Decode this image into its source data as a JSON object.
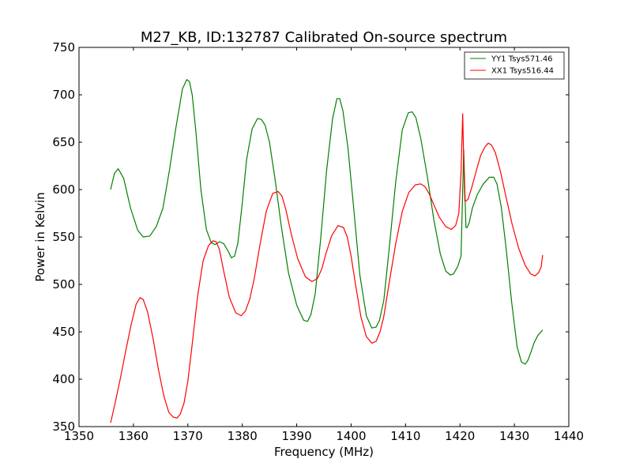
{
  "chart_data": {
    "type": "line",
    "title": "M27_KB, ID:132787 Calibrated On-source spectrum",
    "xlabel": "Frequency (MHz)",
    "ylabel": "Power in Kelvin",
    "xlim": [
      1350,
      1440
    ],
    "ylim": [
      350,
      750
    ],
    "xticks": [
      "1350",
      "1360",
      "1370",
      "1380",
      "1390",
      "1400",
      "1410",
      "1420",
      "1430",
      "1440"
    ],
    "yticks": [
      "350",
      "400",
      "450",
      "500",
      "550",
      "600",
      "650",
      "700",
      "750"
    ],
    "grid": false,
    "legend_position": "top-right",
    "series": [
      {
        "name": "YY1 Tsys571.46",
        "color": "#008000",
        "x": [
          1355.8,
          1356.5,
          1357.2,
          1358.2,
          1359.5,
          1360.8,
          1361.8,
          1363.0,
          1364.2,
          1365.4,
          1366.6,
          1367.8,
          1369.0,
          1369.8,
          1370.3,
          1370.8,
          1371.5,
          1372.4,
          1373.4,
          1374.3,
          1375.0,
          1375.8,
          1376.6,
          1377.4,
          1378.0,
          1378.6,
          1379.2,
          1380.0,
          1380.8,
          1381.8,
          1382.8,
          1383.5,
          1384.2,
          1385.0,
          1386.0,
          1387.2,
          1388.5,
          1390.0,
          1391.3,
          1392.0,
          1392.6,
          1393.4,
          1394.4,
          1395.5,
          1396.6,
          1397.4,
          1397.9,
          1398.5,
          1399.4,
          1400.4,
          1401.6,
          1402.8,
          1403.8,
          1404.6,
          1405.2,
          1406.0,
          1407.0,
          1408.2,
          1409.4,
          1410.5,
          1411.2,
          1411.9,
          1412.8,
          1414.0,
          1415.2,
          1416.4,
          1417.4,
          1418.2,
          1418.8,
          1419.6,
          1420.2,
          1420.5,
          1420.7,
          1420.9,
          1421.1,
          1421.3,
          1421.7,
          1422.3,
          1423.2,
          1424.3,
          1425.4,
          1426.2,
          1426.8,
          1427.6,
          1428.5,
          1429.5,
          1430.5,
          1431.3,
          1432.0,
          1432.5,
          1433.0,
          1433.6,
          1434.3,
          1435.2
        ],
        "y": [
          600,
          617,
          622,
          612,
          580,
          557,
          550,
          551,
          561,
          580,
          620,
          665,
          706,
          716,
          714,
          700,
          660,
          600,
          558,
          544,
          542,
          545,
          543,
          535,
          528,
          530,
          544,
          586,
          632,
          664,
          675,
          674,
          668,
          650,
          612,
          560,
          512,
          478,
          462,
          461,
          468,
          490,
          548,
          620,
          675,
          696,
          696,
          683,
          645,
          585,
          510,
          467,
          454,
          455,
          462,
          483,
          538,
          608,
          663,
          681,
          682,
          676,
          654,
          614,
          568,
          532,
          514,
          510,
          511,
          519,
          530,
          600,
          642,
          600,
          560,
          560,
          565,
          581,
          595,
          606,
          613,
          613,
          606,
          581,
          537,
          481,
          434,
          418,
          416,
          420,
          428,
          438,
          446,
          452
        ]
      },
      {
        "name": "XX1 Tsys516.44",
        "color": "#ff0000",
        "x": [
          1355.8,
          1356.6,
          1357.6,
          1358.6,
          1359.6,
          1360.5,
          1361.2,
          1361.8,
          1362.6,
          1363.6,
          1364.6,
          1365.6,
          1366.5,
          1367.3,
          1368.0,
          1368.6,
          1369.3,
          1370.0,
          1370.8,
          1371.8,
          1372.8,
          1373.8,
          1374.6,
          1375.2,
          1375.8,
          1376.6,
          1377.6,
          1378.8,
          1379.8,
          1380.6,
          1381.4,
          1382.2,
          1383.2,
          1384.4,
          1385.6,
          1386.6,
          1387.3,
          1388.0,
          1389.0,
          1390.2,
          1391.6,
          1392.8,
          1393.8,
          1394.6,
          1395.4,
          1396.4,
          1397.6,
          1398.6,
          1399.3,
          1400.0,
          1400.8,
          1401.8,
          1402.8,
          1403.8,
          1404.6,
          1405.3,
          1406.0,
          1407.0,
          1408.2,
          1409.4,
          1410.6,
          1411.8,
          1412.8,
          1413.6,
          1414.4,
          1415.2,
          1416.2,
          1417.4,
          1418.4,
          1419.2,
          1419.8,
          1420.2,
          1420.5,
          1420.7,
          1420.9,
          1421.1,
          1421.5,
          1422.2,
          1423.0,
          1423.8,
          1424.6,
          1425.2,
          1425.8,
          1426.5,
          1427.4,
          1428.4,
          1429.6,
          1430.8,
          1432.0,
          1433.0,
          1433.8,
          1434.4,
          1434.9,
          1435.2
        ],
        "y": [
          354,
          374,
          401,
          430,
          458,
          479,
          486,
          484,
          471,
          443,
          410,
          382,
          365,
          360,
          359,
          363,
          375,
          398,
          437,
          488,
          525,
          541,
          546,
          545,
          537,
          514,
          487,
          470,
          467,
          472,
          485,
          506,
          540,
          577,
          596,
          598,
          593,
          579,
          553,
          527,
          508,
          503,
          506,
          516,
          533,
          551,
          562,
          560,
          550,
          530,
          500,
          466,
          445,
          438,
          440,
          450,
          466,
          502,
          543,
          577,
          597,
          605,
          606,
          603,
          595,
          584,
          571,
          561,
          558,
          562,
          575,
          618,
          680,
          630,
          588,
          588,
          590,
          603,
          620,
          636,
          645,
          649,
          647,
          639,
          620,
          594,
          563,
          538,
          520,
          511,
          509,
          512,
          518,
          531
        ]
      }
    ]
  }
}
